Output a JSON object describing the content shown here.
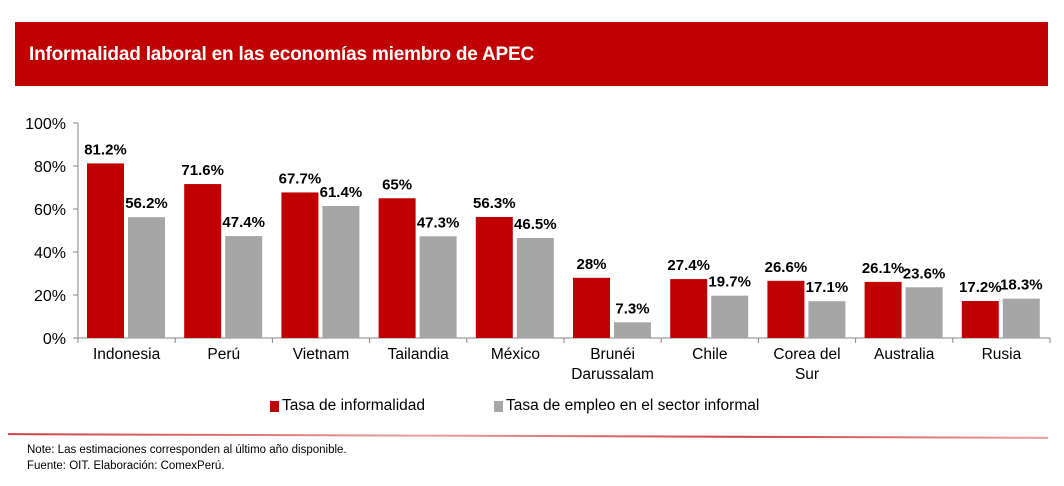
{
  "header": {
    "title": "Informalidad laboral en las economías miembro de APEC"
  },
  "chart_data": {
    "type": "bar",
    "title": "Informalidad laboral en las economías miembro de APEC",
    "categories": [
      "Indonesia",
      "Perú",
      "Vietnam",
      "Tailandia",
      "México",
      "Brunéi Darussalam",
      "Chile",
      "Corea del Sur",
      "Australia",
      "Rusia"
    ],
    "category_lines": [
      [
        "Indonesia"
      ],
      [
        "Perú"
      ],
      [
        "Vietnam"
      ],
      [
        "Tailandia"
      ],
      [
        "México"
      ],
      [
        "Brunéi",
        "Darussalam"
      ],
      [
        "Chile"
      ],
      [
        "Corea del",
        "Sur"
      ],
      [
        "Australia"
      ],
      [
        "Rusia"
      ]
    ],
    "series": [
      {
        "name": "Tasa de informalidad",
        "color": "#c00000",
        "values": [
          81.2,
          71.6,
          67.7,
          65,
          56.3,
          28,
          27.4,
          26.6,
          26.1,
          17.2
        ],
        "labels": [
          "81.2%",
          "71.6%",
          "67.7%",
          "65%",
          "56.3%",
          "28%",
          "27.4%",
          "26.6%",
          "26.1%",
          "17.2%"
        ]
      },
      {
        "name": "Tasa de empleo en el sector informal",
        "color": "#a6a6a6",
        "values": [
          56.2,
          47.4,
          61.4,
          47.3,
          46.5,
          7.3,
          19.7,
          17.1,
          23.6,
          18.3
        ],
        "labels": [
          "56.2%",
          "47.4%",
          "61.4%",
          "47.3%",
          "46.5%",
          "7.3%",
          "19.7%",
          "17.1%",
          "23.6%",
          "18.3%"
        ]
      }
    ],
    "yticks": [
      "0%",
      "20%",
      "40%",
      "60%",
      "80%",
      "100%"
    ],
    "ylim": [
      0,
      100
    ],
    "xlabel": "",
    "ylabel": "",
    "grid": false,
    "legend": "bottom"
  },
  "notes": {
    "note": "Note: Las estimaciones corresponden al último año disponible.",
    "source": "Fuente: OIT. Elaboración: ComexPerú."
  }
}
